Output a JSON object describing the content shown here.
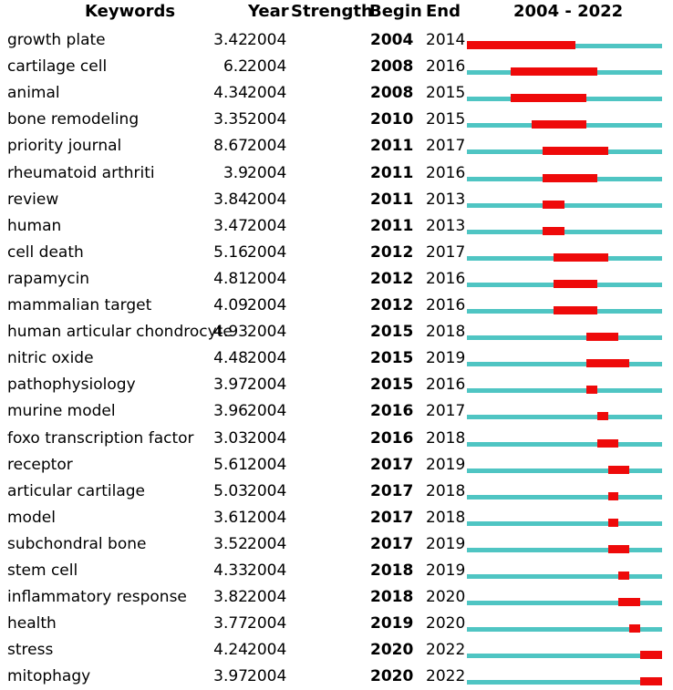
{
  "chart_data": {
    "type": "table",
    "title": "",
    "headers": {
      "keyword": "Keywords",
      "year": "Year",
      "strength": "Strength",
      "begin": "Begin",
      "end": "End",
      "timeline": "2004 - 2022"
    },
    "range": [
      2004,
      2022
    ],
    "colors": {
      "baseline": "#4fc5c3",
      "burst": "#ee0a0a"
    },
    "rows": [
      {
        "keyword": "growth plate",
        "year": "2004",
        "strength": "3.42",
        "begin": "2004",
        "end": "2014"
      },
      {
        "keyword": "cartilage cell",
        "year": "2004",
        "strength": "6.2",
        "begin": "2008",
        "end": "2016"
      },
      {
        "keyword": "animal",
        "year": "2004",
        "strength": "4.34",
        "begin": "2008",
        "end": "2015"
      },
      {
        "keyword": "bone remodeling",
        "year": "2004",
        "strength": "3.35",
        "begin": "2010",
        "end": "2015"
      },
      {
        "keyword": "priority journal",
        "year": "2004",
        "strength": "8.67",
        "begin": "2011",
        "end": "2017"
      },
      {
        "keyword": "rheumatoid arthriti",
        "year": "2004",
        "strength": "3.9",
        "begin": "2011",
        "end": "2016"
      },
      {
        "keyword": "review",
        "year": "2004",
        "strength": "3.84",
        "begin": "2011",
        "end": "2013"
      },
      {
        "keyword": "human",
        "year": "2004",
        "strength": "3.47",
        "begin": "2011",
        "end": "2013"
      },
      {
        "keyword": "cell death",
        "year": "2004",
        "strength": "5.16",
        "begin": "2012",
        "end": "2017"
      },
      {
        "keyword": "rapamycin",
        "year": "2004",
        "strength": "4.81",
        "begin": "2012",
        "end": "2016"
      },
      {
        "keyword": "mammalian target",
        "year": "2004",
        "strength": "4.09",
        "begin": "2012",
        "end": "2016"
      },
      {
        "keyword": "human articular chondrocyte",
        "year": "2004",
        "strength": "4.93",
        "begin": "2015",
        "end": "2018"
      },
      {
        "keyword": "nitric oxide",
        "year": "2004",
        "strength": "4.48",
        "begin": "2015",
        "end": "2019"
      },
      {
        "keyword": "pathophysiology",
        "year": "2004",
        "strength": "3.97",
        "begin": "2015",
        "end": "2016"
      },
      {
        "keyword": "murine model",
        "year": "2004",
        "strength": "3.96",
        "begin": "2016",
        "end": "2017"
      },
      {
        "keyword": "foxo transcription factor",
        "year": "2004",
        "strength": "3.03",
        "begin": "2016",
        "end": "2018"
      },
      {
        "keyword": "receptor",
        "year": "2004",
        "strength": "5.61",
        "begin": "2017",
        "end": "2019"
      },
      {
        "keyword": "articular cartilage",
        "year": "2004",
        "strength": "5.03",
        "begin": "2017",
        "end": "2018"
      },
      {
        "keyword": "model",
        "year": "2004",
        "strength": "3.61",
        "begin": "2017",
        "end": "2018"
      },
      {
        "keyword": "subchondral bone",
        "year": "2004",
        "strength": "3.52",
        "begin": "2017",
        "end": "2019"
      },
      {
        "keyword": "stem cell",
        "year": "2004",
        "strength": "4.33",
        "begin": "2018",
        "end": "2019"
      },
      {
        "keyword": "inflammatory response",
        "year": "2004",
        "strength": "3.82",
        "begin": "2018",
        "end": "2020"
      },
      {
        "keyword": "health",
        "year": "2004",
        "strength": "3.77",
        "begin": "2019",
        "end": "2020"
      },
      {
        "keyword": "stress",
        "year": "2004",
        "strength": "4.24",
        "begin": "2020",
        "end": "2022"
      },
      {
        "keyword": "mitophagy",
        "year": "2004",
        "strength": "3.97",
        "begin": "2020",
        "end": "2022"
      }
    ]
  }
}
